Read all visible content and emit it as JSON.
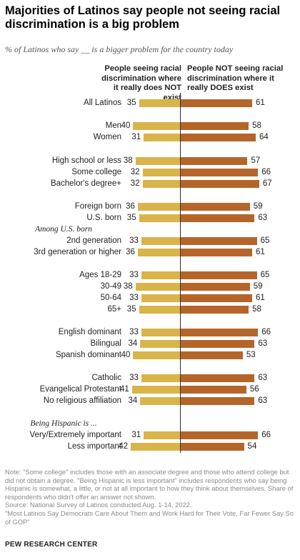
{
  "title": "Majorities of Latinos say people not seeing racial discrimination is a big problem",
  "subtitle": "% of Latinos who say __ is a bigger problem for the country today",
  "column_left": "People seeing racial discrimination where it really does NOT exist",
  "column_right": "People NOT seeing racial discrimination where it really DOES exist",
  "notes": [
    "Note: \"Some college\" includes those with an associate degree and those who attend college but did not obtain a degree. \"Being Hispanic is less important\" includes respondents who say being Hispanic is somewhat, a little, or not at all important to how they think about themselves. Share of respondents who didn't offer an answer not shown.",
    "Source: National Survey of Latinos conducted Aug. 1-14, 2022.",
    "\"Most Latinos Say Democrats Care About Them and Work Hard for Their Vote, Far Fewer Say So of GOP\""
  ],
  "brand": "PEW RESEARCH CENTER",
  "colors": {
    "left_bar": "#d9b44a",
    "right_bar": "#b5652a"
  },
  "chart_data": {
    "type": "bar",
    "orientation": "diverging-horizontal",
    "title": "Majorities of Latinos say people not seeing racial discrimination is a big problem",
    "xlim": [
      0,
      70
    ],
    "series": [
      {
        "name": "People seeing racial discrimination where it really does NOT exist",
        "values": [
          35,
          40,
          31,
          38,
          32,
          32,
          36,
          35,
          null,
          33,
          36,
          33,
          38,
          33,
          35,
          33,
          34,
          40,
          33,
          41,
          34,
          null,
          31,
          42
        ]
      },
      {
        "name": "People NOT seeing racial discrimination where it really DOES exist",
        "values": [
          61,
          58,
          64,
          57,
          66,
          67,
          59,
          63,
          null,
          65,
          61,
          65,
          59,
          61,
          58,
          66,
          63,
          53,
          63,
          56,
          63,
          null,
          66,
          54
        ]
      }
    ],
    "categories": [
      "All Latinos",
      "Men",
      "Women",
      "High school or less",
      "Some college",
      "Bachelor's degree+",
      "Foreign born",
      "U.S. born",
      "Among U.S. born",
      "2nd generation",
      "3rd generation or higher",
      "Ages 18-29",
      "30-49",
      "50-64",
      "65+",
      "English dominant",
      "Bilingual",
      "Spanish dominant",
      "Catholic",
      "Evangelical Protestant",
      "No religious affiliation",
      "Being Hispanic is ...",
      "Very/Extremely important",
      "Less important"
    ],
    "rows": [
      {
        "label": "All Latinos",
        "left": 35,
        "right": 61
      },
      {
        "label": "Men",
        "left": 40,
        "right": 58
      },
      {
        "label": "Women",
        "left": 31,
        "right": 64
      },
      {
        "label": "High school or less",
        "left": 38,
        "right": 57
      },
      {
        "label": "Some college",
        "left": 32,
        "right": 66
      },
      {
        "label": "Bachelor's degree+",
        "left": 32,
        "right": 67
      },
      {
        "label": "Foreign born",
        "left": 36,
        "right": 59
      },
      {
        "label": "U.S. born",
        "left": 35,
        "right": 63
      },
      {
        "label": "Among U.S. born",
        "header": true
      },
      {
        "label": "2nd generation",
        "left": 33,
        "right": 65
      },
      {
        "label": "3rd generation or higher",
        "left": 36,
        "right": 61
      },
      {
        "label": "Ages 18-29",
        "left": 33,
        "right": 65
      },
      {
        "label": "30-49",
        "left": 38,
        "right": 59
      },
      {
        "label": "50-64",
        "left": 33,
        "right": 61
      },
      {
        "label": "65+",
        "left": 35,
        "right": 58
      },
      {
        "label": "English dominant",
        "left": 33,
        "right": 66
      },
      {
        "label": "Bilingual",
        "left": 34,
        "right": 63
      },
      {
        "label": "Spanish dominant",
        "left": 40,
        "right": 53
      },
      {
        "label": "Catholic",
        "left": 33,
        "right": 63
      },
      {
        "label": "Evangelical Protestant",
        "left": 41,
        "right": 56
      },
      {
        "label": "No religious affiliation",
        "left": 34,
        "right": 63
      },
      {
        "label": "Being Hispanic is ...",
        "header": true
      },
      {
        "label": "Very/Extremely important",
        "left": 31,
        "right": 66
      },
      {
        "label": "Less important",
        "left": 42,
        "right": 54
      }
    ]
  }
}
